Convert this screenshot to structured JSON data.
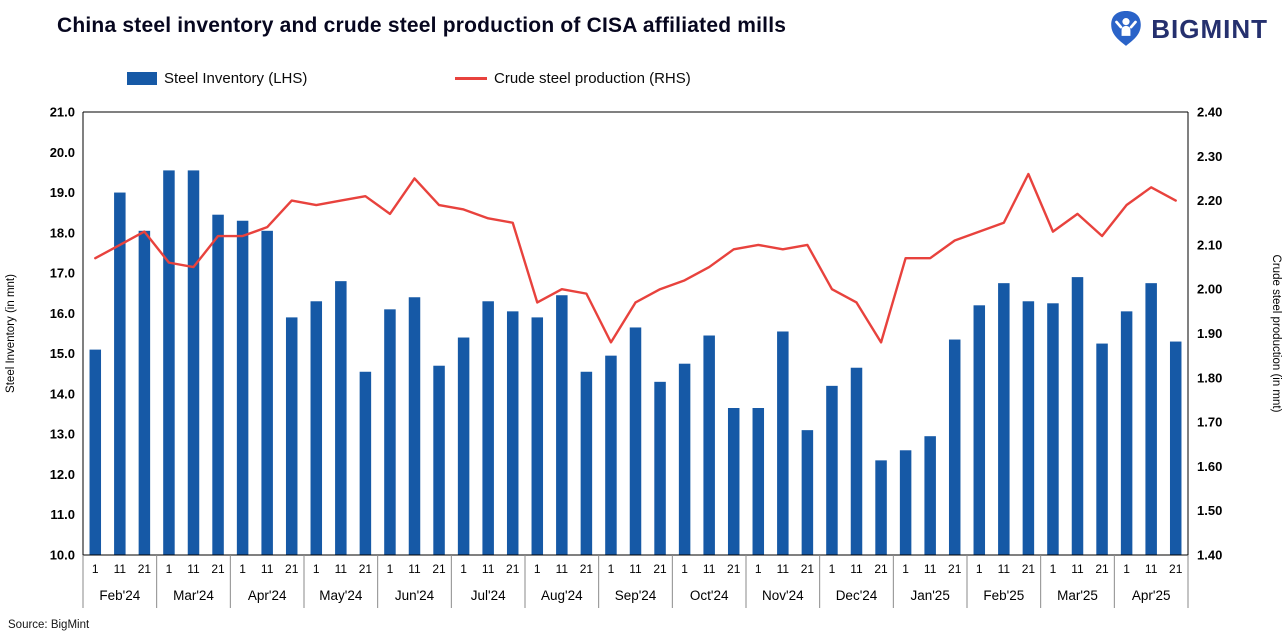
{
  "header": {
    "title": "China steel inventory and crude steel production of CISA affiliated mills",
    "brand": "BIGMINT"
  },
  "legend": [
    {
      "label": "Steel Inventory (LHS)",
      "color": "#1659a6",
      "type": "bar"
    },
    {
      "label": "Crude steel production (RHS)",
      "color": "#e8423d",
      "type": "line"
    }
  ],
  "source": "Source: BigMint",
  "colors": {
    "bar": "#1659a6",
    "line": "#e8423d",
    "axis": "#000000",
    "separator": "#8a8a8a",
    "brand_navy": "#25306e",
    "logo_blue": "#2a63c8"
  },
  "chart_data": {
    "type": "bar",
    "title": "China steel inventory and crude steel production of CISA affiliated mills",
    "months": [
      "Feb'24",
      "Mar'24",
      "Apr'24",
      "May'24",
      "Jun'24",
      "Jul'24",
      "Aug'24",
      "Sep'24",
      "Oct'24",
      "Nov'24",
      "Dec'24",
      "Jan'25",
      "Feb'25",
      "Mar'25",
      "Apr'25"
    ],
    "day_ticks": [
      "1",
      "11",
      "21"
    ],
    "left_axis": {
      "label": "Steel Inventory  (in mnt)",
      "min": 10.0,
      "max": 21.0,
      "step": 1.0
    },
    "right_axis": {
      "label": "Crude steel production  (in mnt)",
      "min": 1.4,
      "max": 2.4,
      "step": 0.1
    },
    "grid": false,
    "legend_position": "top",
    "series": [
      {
        "name": "Steel Inventory (LHS)",
        "type": "bar",
        "axis": "left",
        "color": "#1659a6",
        "values": [
          15.1,
          19.0,
          18.05,
          19.55,
          19.55,
          18.45,
          18.3,
          18.05,
          15.9,
          16.3,
          16.8,
          14.55,
          16.1,
          16.4,
          14.7,
          15.4,
          16.3,
          16.05,
          15.9,
          16.45,
          14.55,
          14.95,
          15.65,
          14.3,
          14.75,
          15.45,
          13.65,
          13.65,
          15.55,
          13.1,
          14.2,
          14.65,
          12.35,
          12.6,
          12.95,
          15.35,
          16.2,
          16.75,
          16.3,
          16.25,
          16.9,
          15.25,
          16.05,
          16.75,
          15.3
        ]
      },
      {
        "name": "Crude steel production (RHS)",
        "type": "line",
        "axis": "right",
        "color": "#e8423d",
        "values": [
          2.07,
          2.1,
          2.13,
          2.06,
          2.05,
          2.12,
          2.12,
          2.14,
          2.2,
          2.19,
          2.2,
          2.21,
          2.17,
          2.25,
          2.19,
          2.18,
          2.16,
          2.15,
          1.97,
          2.0,
          1.99,
          1.88,
          1.97,
          2.0,
          2.02,
          2.05,
          2.09,
          2.1,
          2.09,
          2.1,
          2.0,
          1.97,
          1.88,
          2.07,
          2.07,
          2.11,
          2.13,
          2.15,
          2.26,
          2.13,
          2.17,
          2.12,
          2.19,
          2.23,
          2.2
        ]
      }
    ]
  }
}
